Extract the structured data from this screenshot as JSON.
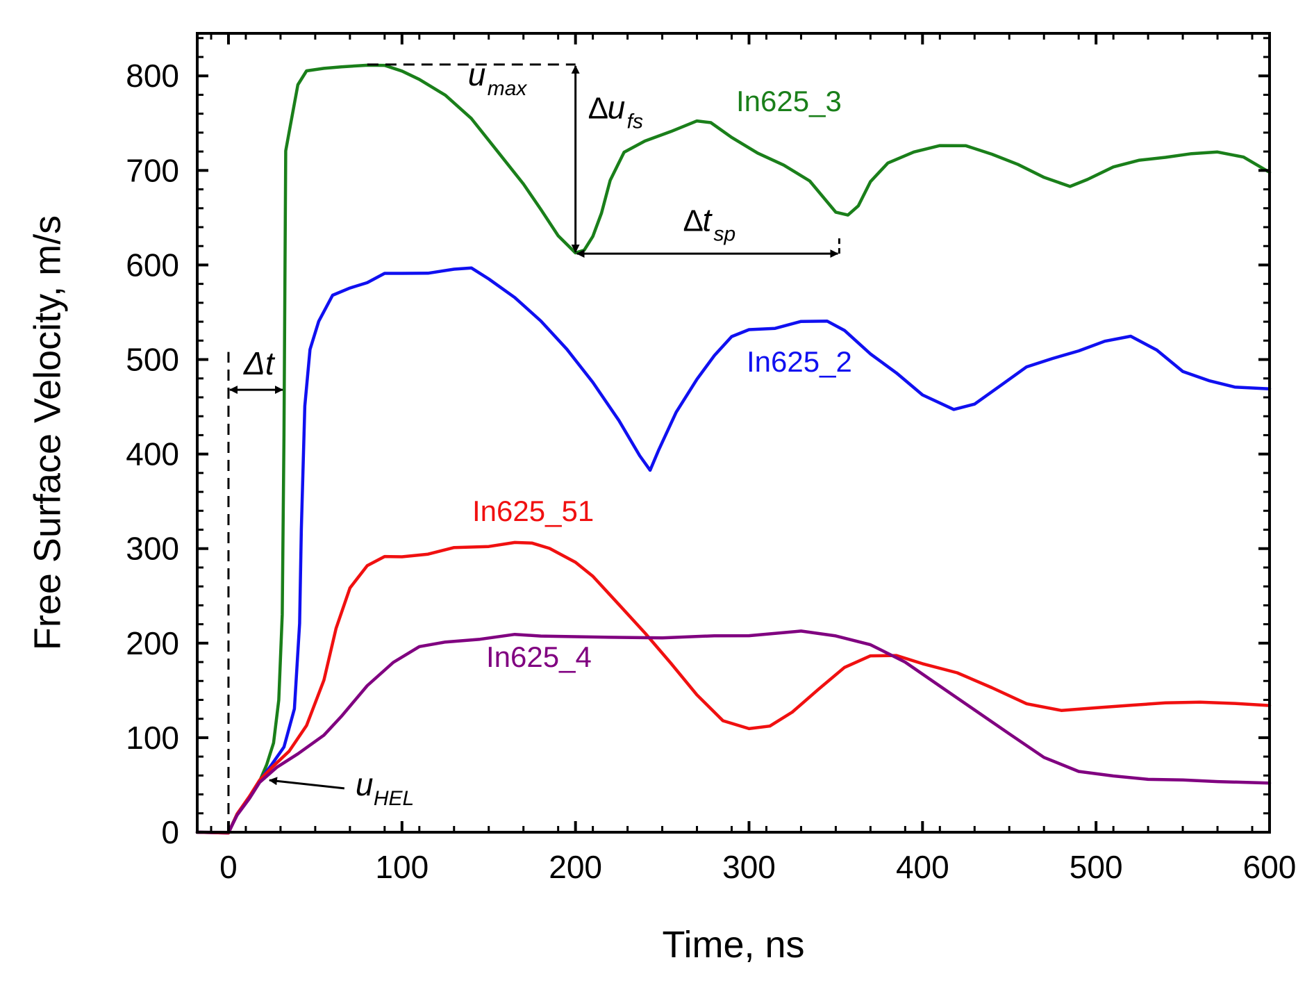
{
  "chart_data": {
    "type": "line",
    "title": "",
    "xlabel": "Time, ns",
    "ylabel": "Free Surface Velocity, m/s",
    "xlim": [
      -18,
      600
    ],
    "ylim": [
      0,
      845
    ],
    "xticks": [
      0,
      100,
      200,
      300,
      400,
      500,
      600
    ],
    "xtick_labels": [
      "0",
      "100",
      "200",
      "300",
      "400",
      "500",
      "600"
    ],
    "yticks": [
      0,
      100,
      200,
      300,
      400,
      500,
      600,
      700,
      800
    ],
    "ytick_labels": [
      "0",
      "100",
      "200",
      "300",
      "400",
      "500",
      "600",
      "700",
      "800"
    ],
    "grid": false,
    "series": [
      {
        "name": "In625_3",
        "label": "In625_3",
        "color": "#1a7f1a",
        "points": [
          [
            -18,
            0
          ],
          [
            0,
            0
          ],
          [
            5,
            20
          ],
          [
            12,
            38
          ],
          [
            18,
            55
          ],
          [
            22,
            72
          ],
          [
            26,
            95
          ],
          [
            29,
            140
          ],
          [
            31,
            230
          ],
          [
            32,
            420
          ],
          [
            33,
            720
          ],
          [
            35,
            740
          ],
          [
            37,
            760
          ],
          [
            40,
            790
          ],
          [
            45,
            805
          ],
          [
            55,
            808
          ],
          [
            65,
            810
          ],
          [
            80,
            812
          ],
          [
            90,
            812
          ],
          [
            100,
            806
          ],
          [
            110,
            797
          ],
          [
            125,
            780
          ],
          [
            140,
            755
          ],
          [
            155,
            720
          ],
          [
            170,
            685
          ],
          [
            180,
            658
          ],
          [
            190,
            630
          ],
          [
            200,
            612
          ],
          [
            205,
            615
          ],
          [
            210,
            630
          ],
          [
            215,
            655
          ],
          [
            220,
            690
          ],
          [
            228,
            720
          ],
          [
            240,
            732
          ],
          [
            255,
            742
          ],
          [
            270,
            753
          ],
          [
            278,
            751
          ],
          [
            290,
            735
          ],
          [
            305,
            718
          ],
          [
            320,
            705
          ],
          [
            335,
            688
          ],
          [
            350,
            655
          ],
          [
            357,
            652
          ],
          [
            363,
            662
          ],
          [
            370,
            688
          ],
          [
            380,
            708
          ],
          [
            395,
            720
          ],
          [
            410,
            727
          ],
          [
            425,
            727
          ],
          [
            440,
            718
          ],
          [
            455,
            707
          ],
          [
            470,
            693
          ],
          [
            485,
            683
          ],
          [
            495,
            690
          ],
          [
            510,
            703
          ],
          [
            525,
            710
          ],
          [
            540,
            713
          ],
          [
            555,
            717
          ],
          [
            570,
            719
          ],
          [
            585,
            714
          ],
          [
            600,
            698
          ]
        ]
      },
      {
        "name": "In625_2",
        "label": "In625_2",
        "color": "#1010f0",
        "points": [
          [
            -18,
            0
          ],
          [
            0,
            0
          ],
          [
            5,
            20
          ],
          [
            12,
            38
          ],
          [
            18,
            55
          ],
          [
            25,
            72
          ],
          [
            32,
            90
          ],
          [
            38,
            130
          ],
          [
            41,
            220
          ],
          [
            42,
            320
          ],
          [
            44,
            450
          ],
          [
            47,
            510
          ],
          [
            52,
            540
          ],
          [
            60,
            568
          ],
          [
            70,
            576
          ],
          [
            80,
            582
          ],
          [
            90,
            592
          ],
          [
            100,
            592
          ],
          [
            115,
            592
          ],
          [
            130,
            596
          ],
          [
            140,
            597
          ],
          [
            150,
            585
          ],
          [
            165,
            565
          ],
          [
            180,
            540
          ],
          [
            195,
            510
          ],
          [
            210,
            475
          ],
          [
            225,
            435
          ],
          [
            237,
            398
          ],
          [
            243,
            383
          ],
          [
            248,
            405
          ],
          [
            258,
            445
          ],
          [
            270,
            480
          ],
          [
            280,
            505
          ],
          [
            290,
            525
          ],
          [
            300,
            532
          ],
          [
            315,
            533
          ],
          [
            330,
            540
          ],
          [
            345,
            540
          ],
          [
            355,
            530
          ],
          [
            370,
            505
          ],
          [
            385,
            485
          ],
          [
            400,
            462
          ],
          [
            418,
            447
          ],
          [
            430,
            453
          ],
          [
            445,
            473
          ],
          [
            460,
            493
          ],
          [
            475,
            502
          ],
          [
            490,
            510
          ],
          [
            505,
            520
          ],
          [
            520,
            525
          ],
          [
            535,
            510
          ],
          [
            550,
            487
          ],
          [
            565,
            477
          ],
          [
            580,
            470
          ],
          [
            600,
            469
          ]
        ]
      },
      {
        "name": "In625_51",
        "label": "In625_51",
        "color": "#f01010",
        "points": [
          [
            -18,
            0
          ],
          [
            0,
            0
          ],
          [
            5,
            20
          ],
          [
            12,
            38
          ],
          [
            18,
            55
          ],
          [
            25,
            68
          ],
          [
            35,
            85
          ],
          [
            45,
            112
          ],
          [
            55,
            160
          ],
          [
            62,
            215
          ],
          [
            70,
            258
          ],
          [
            80,
            282
          ],
          [
            90,
            292
          ],
          [
            100,
            292
          ],
          [
            115,
            295
          ],
          [
            130,
            302
          ],
          [
            150,
            303
          ],
          [
            165,
            307
          ],
          [
            175,
            306
          ],
          [
            185,
            300
          ],
          [
            200,
            285
          ],
          [
            210,
            270
          ],
          [
            225,
            240
          ],
          [
            240,
            210
          ],
          [
            255,
            178
          ],
          [
            270,
            145
          ],
          [
            285,
            118
          ],
          [
            300,
            110
          ],
          [
            312,
            113
          ],
          [
            325,
            128
          ],
          [
            340,
            152
          ],
          [
            355,
            175
          ],
          [
            370,
            187
          ],
          [
            385,
            187
          ],
          [
            400,
            178
          ],
          [
            420,
            168
          ],
          [
            440,
            152
          ],
          [
            460,
            135
          ],
          [
            480,
            128
          ],
          [
            500,
            131
          ],
          [
            520,
            134
          ],
          [
            540,
            137
          ],
          [
            560,
            138
          ],
          [
            580,
            137
          ],
          [
            600,
            134
          ]
        ]
      },
      {
        "name": "In625_4",
        "label": "In625_4",
        "color": "#800080",
        "points": [
          [
            -18,
            0
          ],
          [
            0,
            0
          ],
          [
            5,
            18
          ],
          [
            12,
            35
          ],
          [
            18,
            52
          ],
          [
            28,
            68
          ],
          [
            40,
            82
          ],
          [
            55,
            102
          ],
          [
            65,
            122
          ],
          [
            80,
            155
          ],
          [
            95,
            180
          ],
          [
            110,
            197
          ],
          [
            125,
            202
          ],
          [
            145,
            205
          ],
          [
            165,
            210
          ],
          [
            180,
            208
          ],
          [
            200,
            207
          ],
          [
            220,
            206
          ],
          [
            250,
            205
          ],
          [
            280,
            207
          ],
          [
            300,
            207
          ],
          [
            330,
            212
          ],
          [
            350,
            207
          ],
          [
            370,
            198
          ],
          [
            390,
            180
          ],
          [
            410,
            155
          ],
          [
            430,
            130
          ],
          [
            450,
            105
          ],
          [
            470,
            80
          ],
          [
            490,
            65
          ],
          [
            510,
            60
          ],
          [
            530,
            56
          ],
          [
            550,
            55
          ],
          [
            570,
            53
          ],
          [
            600,
            52
          ]
        ]
      }
    ],
    "annotations": {
      "dt": "Δt",
      "du_fs_delta": "Δ",
      "du_fs_var": "u",
      "du_fs_sub": "fs",
      "umax_var": "u",
      "umax_sub": "max",
      "dtsp_delta": "Δ",
      "dtsp_var": "t",
      "dtsp_sub": "sp",
      "uhel_var": "u",
      "uhel_sub": "HEL",
      "umax_level": 812,
      "dufs_x": 200,
      "dufs_bottom": 612,
      "dtsp_y": 612,
      "dtsp_x_end": 352,
      "dt_y": 468,
      "dt_x_start": 0,
      "dt_x_end": 32,
      "uhel_point": [
        22,
        55
      ],
      "uhel_text_at": [
        70,
        42
      ]
    }
  }
}
